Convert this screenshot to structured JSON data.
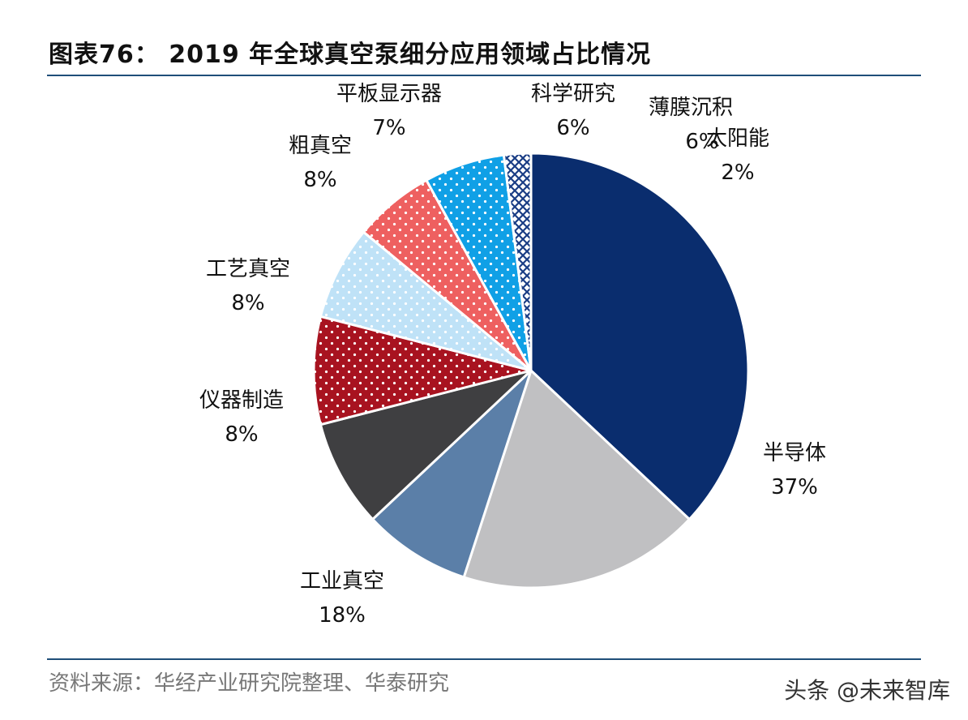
{
  "title": "图表76： 2019 年全球真空泵细分应用领域占比情况",
  "source": "资料来源：华经产业研究院整理、华泰研究",
  "watermark": "头条 @未来智库",
  "chart_data": {
    "type": "pie",
    "title": "2019 年全球真空泵细分应用领域占比情况",
    "slices": [
      {
        "name": "半导体",
        "value": 37,
        "label": "37%",
        "color": "#0a2d6e",
        "pattern": "solid"
      },
      {
        "name": "工业真空",
        "value": 18,
        "label": "18%",
        "color": "#c0c0c2",
        "pattern": "solid"
      },
      {
        "name": "仪器制造",
        "value": 8,
        "label": "8%",
        "color": "#5b7fa8",
        "pattern": "solid"
      },
      {
        "name": "工艺真空",
        "value": 8,
        "label": "8%",
        "color": "#3f3f41",
        "pattern": "solid"
      },
      {
        "name": "粗真空",
        "value": 8,
        "label": "8%",
        "color": "#a81320",
        "pattern": "dots"
      },
      {
        "name": "平板显示器",
        "value": 7,
        "label": "7%",
        "color": "#bfe2f7",
        "pattern": "dots"
      },
      {
        "name": "科学研究",
        "value": 6,
        "label": "6%",
        "color": "#ee6060",
        "pattern": "dots"
      },
      {
        "name": "薄膜沉积",
        "value": 6,
        "label": "6%",
        "color": "#10a0e6",
        "pattern": "dots"
      },
      {
        "name": "太阳能",
        "value": 2,
        "label": "2%",
        "color": "#1a3d85",
        "pattern": "cross"
      }
    ]
  }
}
